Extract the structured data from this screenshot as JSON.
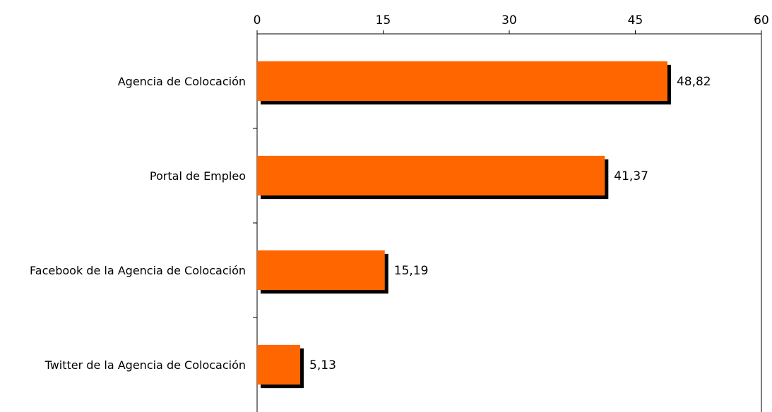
{
  "chart_data": {
    "type": "bar",
    "orientation": "horizontal",
    "categories": [
      "Agencia de Colocación",
      "Portal de Empleo",
      "Facebook de la Agencia de Colocación",
      "Twitter de la Agencia de Colocación"
    ],
    "values": [
      48.82,
      41.37,
      15.19,
      5.13
    ],
    "value_labels": [
      "48,82",
      "41,37",
      "15,19",
      "5,13"
    ],
    "x_ticks": [
      0,
      15,
      30,
      45,
      60
    ],
    "x_tick_labels": [
      "0",
      "15",
      "30",
      "45",
      "60"
    ],
    "xlim": [
      0,
      60
    ],
    "axis_position": "top",
    "grid": false,
    "legend": "none",
    "title": "",
    "xlabel": "",
    "ylabel": ""
  },
  "colors": {
    "bar": "#ff6600",
    "shadow": "#000000",
    "axis": "#000000",
    "background": "#ffffff"
  }
}
